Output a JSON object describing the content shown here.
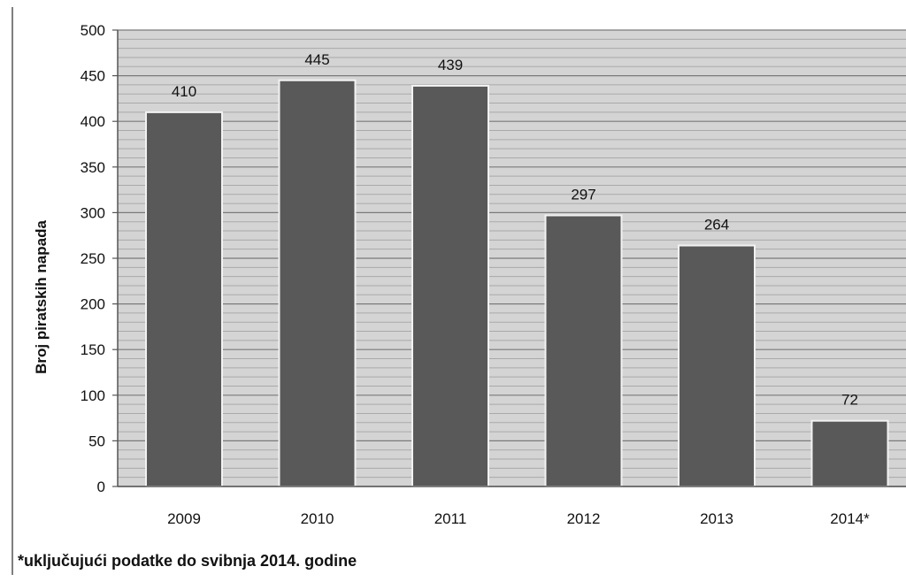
{
  "chart_data": {
    "type": "bar",
    "categories": [
      "2009",
      "2010",
      "2011",
      "2012",
      "2013",
      "2014*"
    ],
    "values": [
      410,
      445,
      439,
      297,
      264,
      72
    ],
    "data_labels": [
      "410",
      "445",
      "439",
      "297",
      "264",
      "72"
    ],
    "title": "",
    "xlabel": "",
    "ylabel": "Broj piratskih napada",
    "ylim": [
      0,
      500
    ],
    "yticks": [
      0,
      50,
      100,
      150,
      200,
      250,
      300,
      350,
      400,
      450,
      500
    ],
    "grid": true,
    "legend": "none",
    "bar_color": "#595959",
    "plot_background": "#d4d4d4"
  },
  "footnote": "*uključujući podatke do svibnja 2014. godine"
}
